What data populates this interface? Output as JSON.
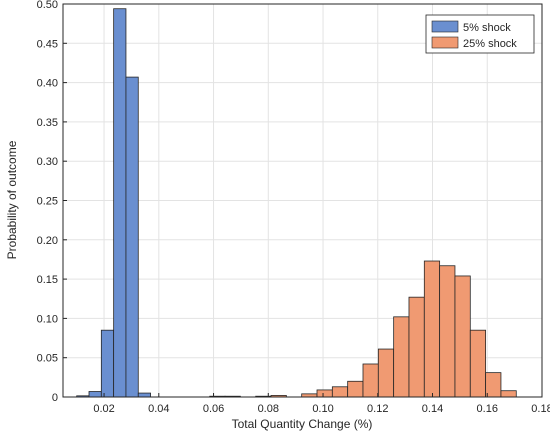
{
  "chart_data": {
    "type": "bar",
    "xlabel": "Total Quantity Change (%)",
    "ylabel": "Probability of outcome",
    "xlim": [
      0.005,
      0.18
    ],
    "ylim": [
      0,
      0.5
    ],
    "xticks": [
      "0.02",
      "0.04",
      "0.06",
      "0.08",
      "0.10",
      "0.12",
      "0.14",
      "0.16",
      "0.18"
    ],
    "yticks": [
      "0",
      "0.05",
      "0.10",
      "0.15",
      "0.20",
      "0.25",
      "0.30",
      "0.35",
      "0.40",
      "0.45",
      "0.50"
    ],
    "grid": true,
    "legend_position": "top-right",
    "series": [
      {
        "name": "5% shock",
        "color": "#6a8fd0",
        "bin_width": 0.0045,
        "bins": [
          [
            0.01,
            0.0015
          ],
          [
            0.0145,
            0.007
          ],
          [
            0.019,
            0.085
          ],
          [
            0.0235,
            0.494
          ],
          [
            0.028,
            0.407
          ],
          [
            0.0325,
            0.005
          ]
        ]
      },
      {
        "name": "25% shock",
        "color": "#f09a72",
        "bin_width": 0.0056,
        "bins": [
          [
            0.0586,
            0.001
          ],
          [
            0.0642,
            0.001
          ],
          [
            0.0754,
            0.001
          ],
          [
            0.081,
            0.002
          ],
          [
            0.0922,
            0.004
          ],
          [
            0.0978,
            0.009
          ],
          [
            0.1034,
            0.013
          ],
          [
            0.109,
            0.02
          ],
          [
            0.1146,
            0.042
          ],
          [
            0.1202,
            0.061
          ],
          [
            0.1258,
            0.102
          ],
          [
            0.1314,
            0.127
          ],
          [
            0.137,
            0.173
          ],
          [
            0.1426,
            0.167
          ],
          [
            0.1482,
            0.154
          ],
          [
            0.1538,
            0.085
          ],
          [
            0.1594,
            0.031
          ],
          [
            0.165,
            0.008
          ]
        ]
      }
    ]
  }
}
